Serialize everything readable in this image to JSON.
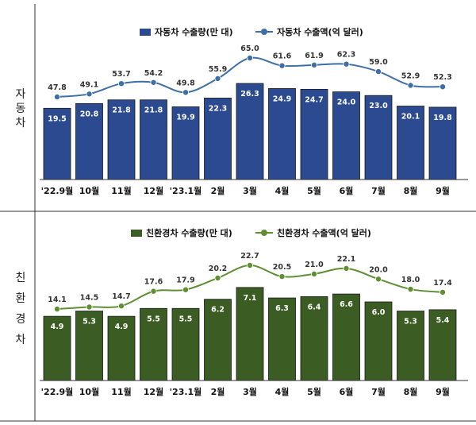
{
  "chart_data": [
    {
      "type": "bar+line",
      "panel_label": "자동차",
      "categories": [
        "'22.9월",
        "10월",
        "11월",
        "12월",
        "'23.1월",
        "2월",
        "3월",
        "4월",
        "5월",
        "6월",
        "7월",
        "8월",
        "9월"
      ],
      "series": [
        {
          "name": "자동차 수출량(만 대)",
          "kind": "bar",
          "color": "#2b4a90",
          "values": [
            19.5,
            20.8,
            21.8,
            21.8,
            19.9,
            22.3,
            26.3,
            24.9,
            24.7,
            24.0,
            23.0,
            20.1,
            19.8
          ]
        },
        {
          "name": "자동차 수출액(억 달러)",
          "kind": "line",
          "color": "#3d6ea6",
          "values": [
            47.8,
            49.1,
            53.7,
            54.2,
            49.8,
            55.9,
            65.0,
            61.6,
            61.9,
            62.3,
            59.0,
            52.9,
            52.3
          ]
        }
      ]
    },
    {
      "type": "bar+line",
      "panel_label": "친환경차",
      "categories": [
        "'22.9월",
        "10월",
        "11월",
        "12월",
        "'23.1월",
        "2월",
        "3월",
        "4월",
        "5월",
        "6월",
        "7월",
        "8월",
        "9월"
      ],
      "series": [
        {
          "name": "친환경차 수출량(만 대)",
          "kind": "bar",
          "color": "#3b5c22",
          "values": [
            4.9,
            5.3,
            4.9,
            5.5,
            5.5,
            6.2,
            7.1,
            6.3,
            6.4,
            6.6,
            6.0,
            5.3,
            5.4
          ]
        },
        {
          "name": "친환경차 수출액(억 달러)",
          "kind": "line",
          "color": "#5f8f33",
          "values": [
            14.1,
            14.5,
            14.7,
            17.6,
            17.9,
            20.2,
            22.7,
            20.5,
            21.0,
            22.1,
            20.0,
            18.0,
            17.4
          ]
        }
      ]
    }
  ]
}
